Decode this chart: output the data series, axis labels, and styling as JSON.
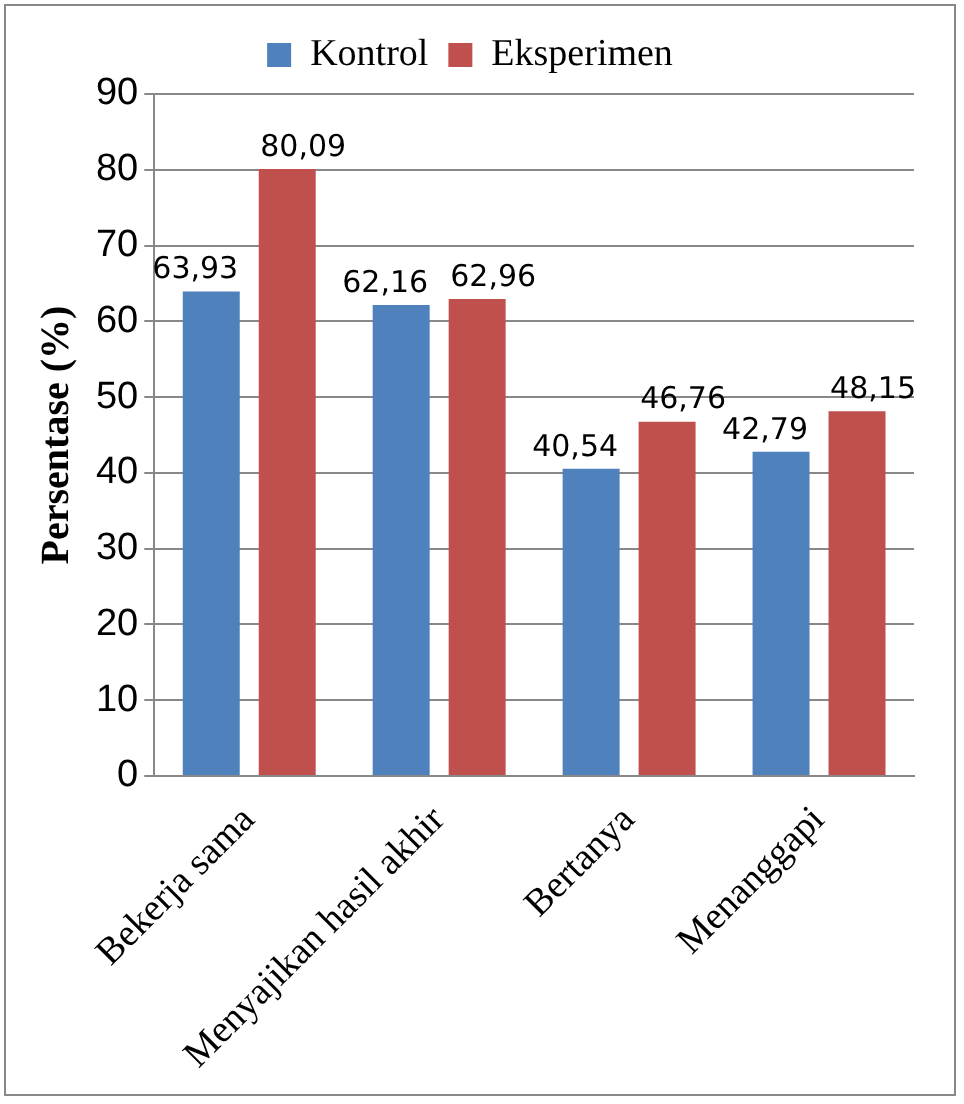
{
  "chart_data": {
    "type": "bar",
    "ylabel": "Persentase (%)",
    "categories": [
      "Bekerja sama",
      "Menyajikan hasil akhir",
      "Bertanya",
      "Menanggapi"
    ],
    "series": [
      {
        "name": "Kontrol",
        "color": "#4f81bd",
        "values": [
          63.93,
          62.16,
          40.54,
          42.79
        ],
        "value_labels": [
          "63,93",
          "62,16",
          "40,54",
          "42,79"
        ]
      },
      {
        "name": "Eksperimen",
        "color": "#c0504d",
        "values": [
          80.09,
          62.96,
          46.76,
          48.15
        ],
        "value_labels": [
          "80,09",
          "62,96",
          "46,76",
          "48,15"
        ]
      }
    ],
    "ylim": [
      0,
      90
    ],
    "yticks": [
      0,
      10,
      20,
      30,
      40,
      50,
      60,
      70,
      80,
      90
    ],
    "grid": "y",
    "legend": "top"
  }
}
